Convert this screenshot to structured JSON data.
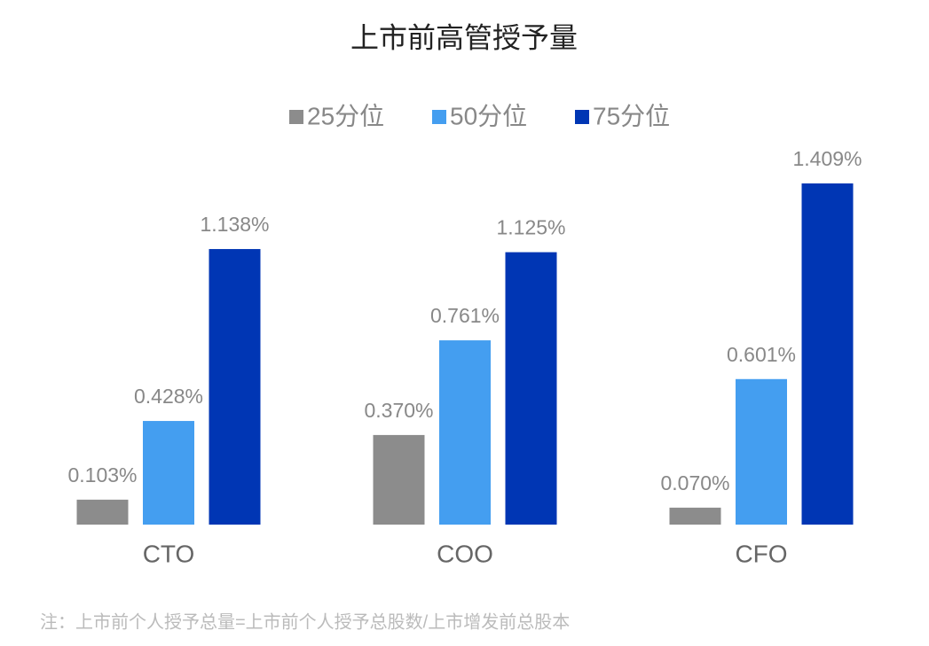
{
  "chart_data": {
    "type": "bar",
    "title": "上市前高管授予量",
    "categories": [
      "CTO",
      "COO",
      "CFO"
    ],
    "series": [
      {
        "name": "25分位",
        "color": "#8c8c8c",
        "values": [
          0.103,
          0.37,
          0.07
        ],
        "value_labels": [
          "0.103%",
          "0.370%",
          "0.070%"
        ]
      },
      {
        "name": "50分位",
        "color": "#449ef0",
        "values": [
          0.428,
          0.761,
          0.601
        ],
        "value_labels": [
          "0.428%",
          "0.761%",
          "0.601%"
        ]
      },
      {
        "name": "75分位",
        "color": "#0036b4",
        "values": [
          1.138,
          1.125,
          1.409
        ],
        "value_labels": [
          "1.138%",
          "1.125%",
          "1.409%"
        ]
      }
    ],
    "note": "注：上市前个人授予总量=上市前个人授予总股数/上市增发前总股本"
  }
}
